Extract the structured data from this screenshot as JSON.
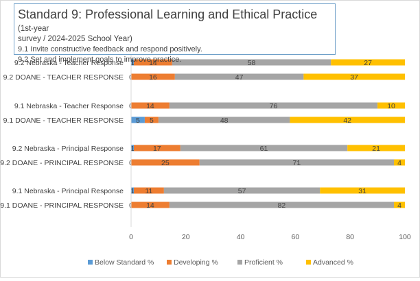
{
  "chart_data": {
    "type": "bar",
    "orientation": "horizontal",
    "stacked": true,
    "title": {
      "main": "Standard 9: Professional Learning and Ethical Practice",
      "tail": "(1st-year",
      "line2": "survey / 2024-2025 School Year)",
      "sub1": "9.1 Invite constructive feedback and respond positively.",
      "sub2": "9.2 Set and implement goals to improve practice."
    },
    "categories": [
      "9.2 Nebraska - Teacher Response",
      "9.2 DOANE - TEACHER RESPONSE",
      "9.1 Nebraska - Teacher Response",
      "9.1 DOANE - TEACHER RESPONSE",
      "9.2 Nebraska - Principal Response",
      "9.2  DOANE  - PRINCIPAL RESPONSE",
      "9.1 Nebraska - Principal Response",
      "9.1 DOANE  - PRINCIPAL RESPONSE"
    ],
    "series": [
      {
        "name": "Below Standard %",
        "color": "#5b9bd5",
        "values": [
          1,
          0,
          0,
          5,
          1,
          0,
          1,
          0
        ]
      },
      {
        "name": "Developing %",
        "color": "#ed7d31",
        "values": [
          14,
          16,
          14,
          5,
          17,
          25,
          11,
          14
        ]
      },
      {
        "name": "Proficient %",
        "color": "#a5a5a5",
        "values": [
          58,
          47,
          76,
          48,
          61,
          71,
          57,
          82
        ]
      },
      {
        "name": "Advanced %",
        "color": "#ffc000",
        "values": [
          27,
          37,
          10,
          42,
          21,
          4,
          31,
          4
        ]
      }
    ],
    "xlim": [
      0,
      100
    ],
    "xticks": [
      0,
      20,
      40,
      60,
      80,
      100
    ],
    "grid": false,
    "legend_position": "bottom",
    "data_labels": true
  }
}
